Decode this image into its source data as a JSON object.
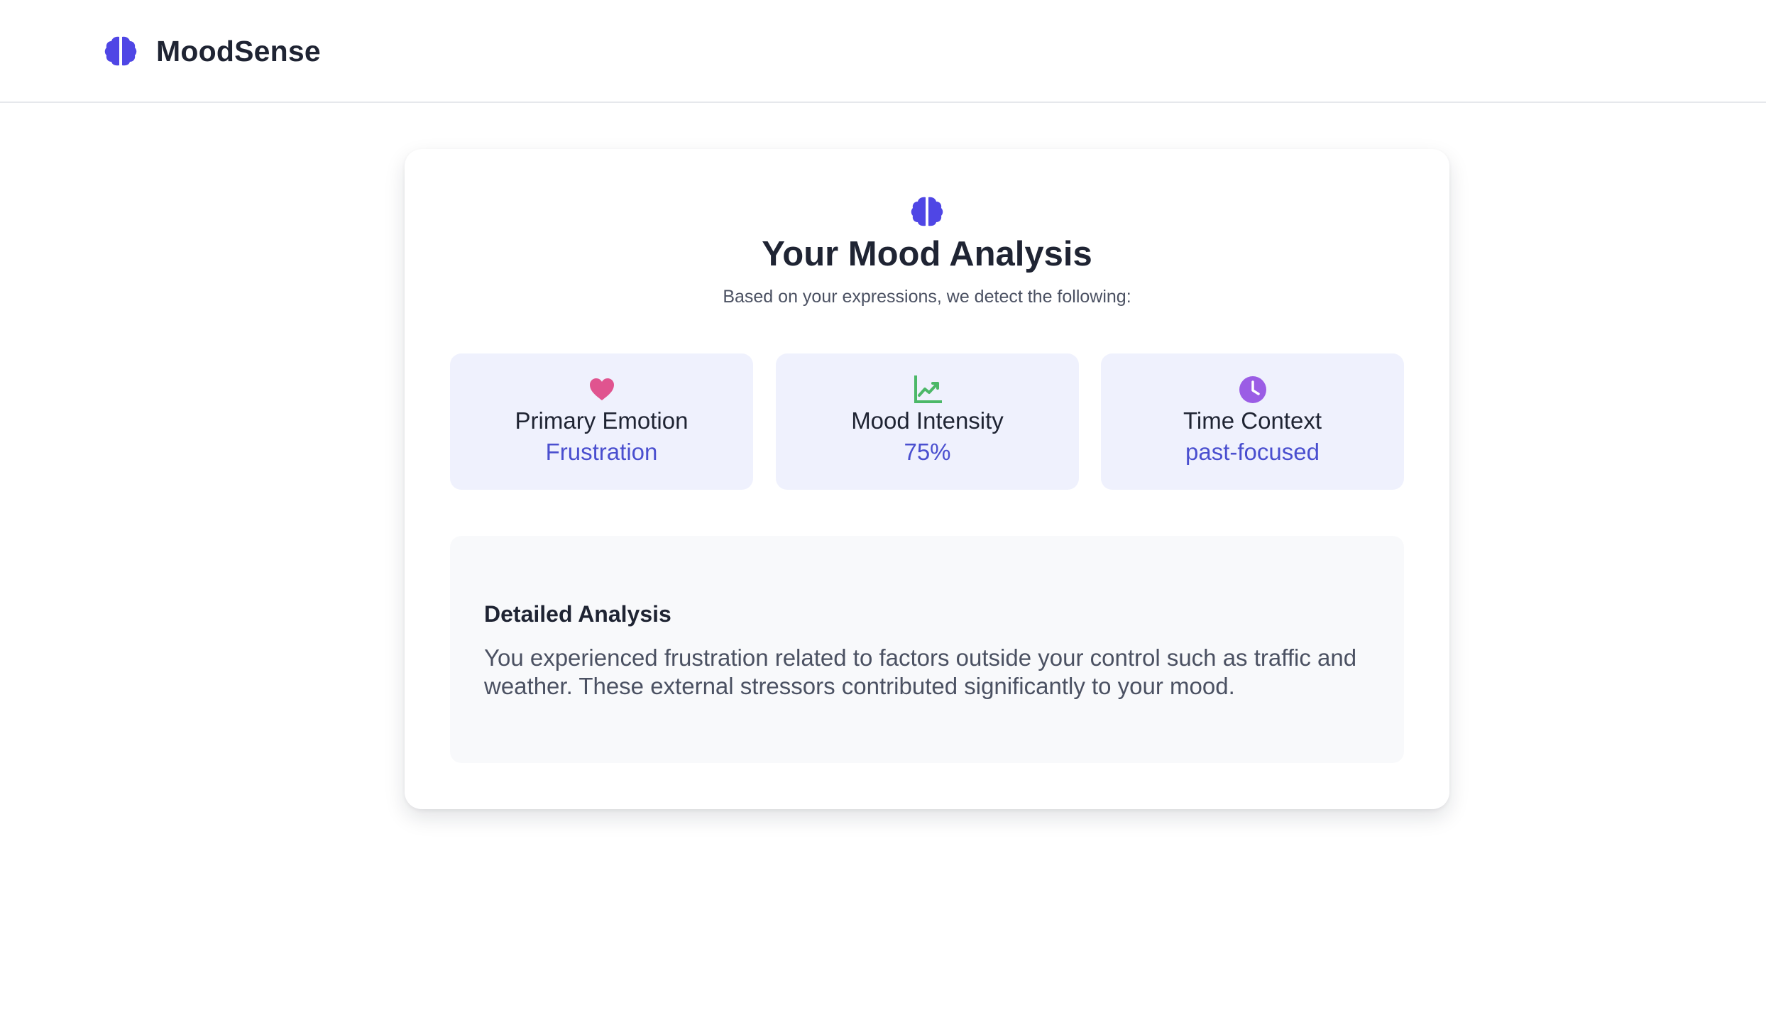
{
  "brand": {
    "name": "MoodSense",
    "icon": "brain-icon",
    "color": "#4f46e5"
  },
  "analysis": {
    "icon": "brain-icon",
    "title": "Your Mood Analysis",
    "subtitle": "Based on your expressions, we detect the following:"
  },
  "stats": [
    {
      "icon": "heart-icon",
      "icon_color": "#e0548f",
      "label": "Primary Emotion",
      "value": "Frustration"
    },
    {
      "icon": "chart-line-icon",
      "icon_color": "#4cb868",
      "label": "Mood Intensity",
      "value": "75%"
    },
    {
      "icon": "clock-icon",
      "icon_color": "#9b5de5",
      "label": "Time Context",
      "value": "past-focused"
    }
  ],
  "detail": {
    "title": "Detailed Analysis",
    "text": "You experienced frustration related to factors outside your control such as traffic and weather. These external stressors contributed significantly to your mood."
  },
  "colors": {
    "accent_text": "#4a4fcf",
    "stat_bg": "#eff1fd",
    "detail_bg": "#f8f9fb"
  }
}
